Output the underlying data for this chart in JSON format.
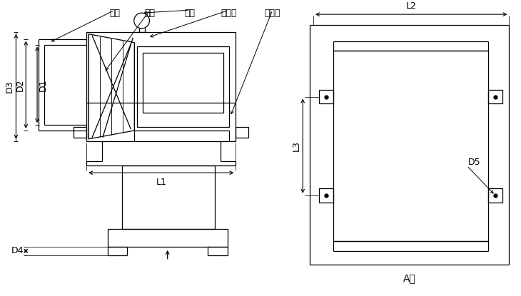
{
  "bg_color": "#ffffff",
  "line_color": "#000000",
  "labels_top": [
    "风筒",
    "叶轮",
    "吊环",
    "导流片",
    "电动机"
  ],
  "dim_label_D1": "D1",
  "dim_label_D2": "D2",
  "dim_label_D3": "D3",
  "dim_label_L1": "L1",
  "dim_label_D4": "D4",
  "dim_label_L2": "L2",
  "dim_label_L3": "L3",
  "dim_label_D5": "D5",
  "label_A": "A向",
  "font_size": 9,
  "font_size_label": 10
}
